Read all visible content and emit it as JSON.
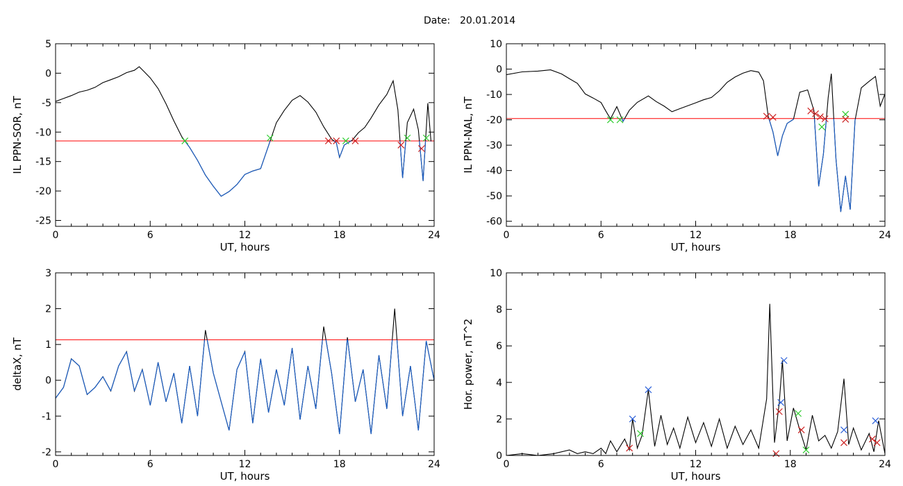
{
  "header": {
    "date_label": "Date:",
    "date_value": "20.01.2014"
  },
  "colors": {
    "trace": "#000000",
    "below": "#1d5fc4",
    "threshold": "#ff0000",
    "marker_red": "#cc1f1f",
    "marker_green": "#2ecc2e",
    "marker_blue": "#2a5fd8"
  },
  "chart_data": [
    {
      "id": "p1",
      "type": "line",
      "xlabel": "UT, hours",
      "ylabel": "IL PPN-SOR, nT",
      "xlim": [
        0,
        24
      ],
      "ylim": [
        -26,
        5
      ],
      "xticks": [
        0,
        6,
        12,
        18,
        24
      ],
      "yticks": [
        5,
        0,
        -5,
        -10,
        -15,
        -20,
        -25
      ],
      "threshold": -11.5,
      "series": [
        {
          "points": [
            [
              0,
              -4.8
            ],
            [
              0.5,
              -4.3
            ],
            [
              1,
              -3.8
            ],
            [
              1.5,
              -3.2
            ],
            [
              2,
              -2.9
            ],
            [
              2.5,
              -2.4
            ],
            [
              3,
              -1.6
            ],
            [
              3.5,
              -1.1
            ],
            [
              4,
              -0.6
            ],
            [
              4.5,
              0.1
            ],
            [
              5,
              0.5
            ],
            [
              5.3,
              1.1
            ],
            [
              5.6,
              0.3
            ],
            [
              6,
              -0.8
            ],
            [
              6.5,
              -2.6
            ],
            [
              7,
              -5.2
            ],
            [
              7.5,
              -8.1
            ],
            [
              8,
              -10.8
            ],
            [
              8.5,
              -12.6
            ],
            [
              9,
              -14.8
            ],
            [
              9.5,
              -17.3
            ],
            [
              10,
              -19.2
            ],
            [
              10.5,
              -20.9
            ],
            [
              11,
              -20.1
            ],
            [
              11.5,
              -18.9
            ],
            [
              12,
              -17.2
            ],
            [
              12.5,
              -16.6
            ],
            [
              13,
              -16.2
            ],
            [
              13.5,
              -12.3
            ],
            [
              14,
              -8.4
            ],
            [
              14.5,
              -6.3
            ],
            [
              15,
              -4.6
            ],
            [
              15.5,
              -3.8
            ],
            [
              16,
              -4.9
            ],
            [
              16.5,
              -6.6
            ],
            [
              17,
              -9.1
            ],
            [
              17.5,
              -11.2
            ],
            [
              17.8,
              -11.8
            ],
            [
              18,
              -14.3
            ],
            [
              18.3,
              -12.2
            ],
            [
              18.8,
              -11.4
            ],
            [
              19.2,
              -10.1
            ],
            [
              19.6,
              -9.2
            ],
            [
              20,
              -7.6
            ],
            [
              20.5,
              -5.4
            ],
            [
              21,
              -3.6
            ],
            [
              21.4,
              -1.3
            ],
            [
              21.7,
              -6.2
            ],
            [
              22,
              -17.8
            ],
            [
              22.3,
              -8.4
            ],
            [
              22.7,
              -6.1
            ],
            [
              23,
              -9.6
            ],
            [
              23.3,
              -18.3
            ],
            [
              23.6,
              -5.1
            ],
            [
              23.8,
              -11.6
            ]
          ]
        }
      ],
      "markers": [
        {
          "x": 8.2,
          "y": -11.5,
          "color": "green"
        },
        {
          "x": 13.6,
          "y": -11.0,
          "color": "green"
        },
        {
          "x": 17.3,
          "y": -11.5,
          "color": "red"
        },
        {
          "x": 17.8,
          "y": -11.5,
          "color": "red"
        },
        {
          "x": 18.4,
          "y": -11.5,
          "color": "green"
        },
        {
          "x": 19.0,
          "y": -11.5,
          "color": "red"
        },
        {
          "x": 21.9,
          "y": -12.2,
          "color": "red"
        },
        {
          "x": 22.3,
          "y": -11.0,
          "color": "green"
        },
        {
          "x": 23.2,
          "y": -12.8,
          "color": "red"
        },
        {
          "x": 23.5,
          "y": -11.0,
          "color": "green"
        }
      ]
    },
    {
      "id": "p2",
      "type": "line",
      "xlabel": "UT, hours",
      "ylabel": "IL PPN-NAL, nT",
      "xlim": [
        0,
        24
      ],
      "ylim": [
        -62,
        10
      ],
      "xticks": [
        0,
        6,
        12,
        18,
        24
      ],
      "yticks": [
        10,
        0,
        -10,
        -20,
        -30,
        -40,
        -50,
        -60
      ],
      "threshold": -19.5,
      "series": [
        {
          "points": [
            [
              0,
              -2.2
            ],
            [
              1,
              -1.1
            ],
            [
              2,
              -0.8
            ],
            [
              2.8,
              -0.3
            ],
            [
              3.5,
              -1.9
            ],
            [
              4,
              -3.8
            ],
            [
              4.5,
              -5.6
            ],
            [
              5,
              -9.8
            ],
            [
              5.5,
              -11.4
            ],
            [
              6,
              -13.2
            ],
            [
              6.3,
              -16.5
            ],
            [
              6.6,
              -19.6
            ],
            [
              7,
              -14.8
            ],
            [
              7.4,
              -20.6
            ],
            [
              7.8,
              -16.2
            ],
            [
              8.3,
              -13.1
            ],
            [
              9,
              -10.6
            ],
            [
              9.5,
              -12.8
            ],
            [
              10,
              -14.6
            ],
            [
              10.5,
              -16.8
            ],
            [
              11,
              -15.6
            ],
            [
              12,
              -13.3
            ],
            [
              12.5,
              -12.1
            ],
            [
              13,
              -11.2
            ],
            [
              13.5,
              -8.6
            ],
            [
              14,
              -5.2
            ],
            [
              14.5,
              -3.1
            ],
            [
              15,
              -1.6
            ],
            [
              15.5,
              -0.6
            ],
            [
              16,
              -1.2
            ],
            [
              16.3,
              -4.6
            ],
            [
              16.6,
              -18.6
            ],
            [
              16.9,
              -24.8
            ],
            [
              17.2,
              -34.2
            ],
            [
              17.5,
              -26.3
            ],
            [
              17.8,
              -21.4
            ],
            [
              18.2,
              -19.8
            ],
            [
              18.6,
              -9.1
            ],
            [
              19.1,
              -8.2
            ],
            [
              19.5,
              -16.4
            ],
            [
              19.8,
              -46.2
            ],
            [
              20.1,
              -33.5
            ],
            [
              20.4,
              -11.2
            ],
            [
              20.6,
              -1.8
            ],
            [
              20.9,
              -35.8
            ],
            [
              21.2,
              -56.3
            ],
            [
              21.5,
              -42.1
            ],
            [
              21.8,
              -55.4
            ],
            [
              22.1,
              -20.3
            ],
            [
              22.5,
              -7.4
            ],
            [
              23,
              -4.8
            ],
            [
              23.4,
              -2.9
            ],
            [
              23.7,
              -14.6
            ],
            [
              24,
              -9.8
            ]
          ]
        }
      ],
      "markers": [
        {
          "x": 6.6,
          "y": -20.0,
          "color": "green"
        },
        {
          "x": 7.2,
          "y": -20.0,
          "color": "green"
        },
        {
          "x": 16.5,
          "y": -18.6,
          "color": "red"
        },
        {
          "x": 16.9,
          "y": -19.0,
          "color": "red"
        },
        {
          "x": 19.3,
          "y": -16.5,
          "color": "red"
        },
        {
          "x": 19.6,
          "y": -17.6,
          "color": "red"
        },
        {
          "x": 19.9,
          "y": -18.8,
          "color": "red"
        },
        {
          "x": 20.2,
          "y": -19.6,
          "color": "red"
        },
        {
          "x": 20.0,
          "y": -22.8,
          "color": "green"
        },
        {
          "x": 21.5,
          "y": -17.8,
          "color": "green"
        },
        {
          "x": 21.5,
          "y": -19.8,
          "color": "red"
        }
      ]
    },
    {
      "id": "p3",
      "type": "line",
      "xlabel": "UT, hours",
      "ylabel": "deltaX, nT",
      "xlim": [
        0,
        24
      ],
      "ylim": [
        -2.1,
        3.0
      ],
      "xticks": [
        0,
        6,
        12,
        18,
        24
      ],
      "yticks": [
        3,
        2,
        1,
        0,
        -1,
        -2
      ],
      "threshold": 1.13,
      "series": [
        {
          "points": [
            [
              0,
              -0.5
            ],
            [
              0.5,
              -0.2
            ],
            [
              1,
              0.6
            ],
            [
              1.5,
              0.4
            ],
            [
              2,
              -0.4
            ],
            [
              2.5,
              -0.2
            ],
            [
              3,
              0.1
            ],
            [
              3.5,
              -0.3
            ],
            [
              4,
              0.4
            ],
            [
              4.5,
              0.8
            ],
            [
              5,
              -0.3
            ],
            [
              5.5,
              0.3
            ],
            [
              6,
              -0.7
            ],
            [
              6.5,
              0.5
            ],
            [
              7,
              -0.6
            ],
            [
              7.5,
              0.2
            ],
            [
              8,
              -1.2
            ],
            [
              8.5,
              0.4
            ],
            [
              9,
              -1.0
            ],
            [
              9.5,
              1.4
            ],
            [
              10,
              0.2
            ],
            [
              10.5,
              -0.6
            ],
            [
              11,
              -1.4
            ],
            [
              11.5,
              0.3
            ],
            [
              12,
              0.8
            ],
            [
              12.5,
              -1.2
            ],
            [
              13,
              0.6
            ],
            [
              13.5,
              -0.9
            ],
            [
              14,
              0.3
            ],
            [
              14.5,
              -0.7
            ],
            [
              15,
              0.9
            ],
            [
              15.5,
              -1.1
            ],
            [
              16,
              0.4
            ],
            [
              16.5,
              -0.8
            ],
            [
              17,
              1.5
            ],
            [
              17.5,
              0.2
            ],
            [
              18,
              -1.5
            ],
            [
              18.5,
              1.2
            ],
            [
              19,
              -0.6
            ],
            [
              19.5,
              0.3
            ],
            [
              20,
              -1.5
            ],
            [
              20.5,
              0.7
            ],
            [
              21,
              -0.8
            ],
            [
              21.5,
              2.0
            ],
            [
              22,
              -1.0
            ],
            [
              22.5,
              0.4
            ],
            [
              23,
              -1.4
            ],
            [
              23.5,
              1.1
            ],
            [
              24,
              0.0
            ]
          ]
        }
      ],
      "markers": []
    },
    {
      "id": "p4",
      "type": "line",
      "xlabel": "UT, hours",
      "ylabel": "Hor. power, nT^2",
      "xlim": [
        0,
        24
      ],
      "ylim": [
        0,
        10
      ],
      "xticks": [
        0,
        6,
        12,
        18,
        24
      ],
      "yticks": [
        10,
        8,
        6,
        4,
        2,
        0
      ],
      "threshold": null,
      "series": [
        {
          "points": [
            [
              0,
              0.0
            ],
            [
              1,
              0.1
            ],
            [
              2,
              0.0
            ],
            [
              3,
              0.1
            ],
            [
              4,
              0.3
            ],
            [
              4.5,
              0.1
            ],
            [
              5,
              0.2
            ],
            [
              5.5,
              0.1
            ],
            [
              6,
              0.4
            ],
            [
              6.3,
              0.1
            ],
            [
              6.6,
              0.8
            ],
            [
              7,
              0.2
            ],
            [
              7.5,
              0.9
            ],
            [
              7.8,
              0.3
            ],
            [
              8,
              2.0
            ],
            [
              8.3,
              0.4
            ],
            [
              8.6,
              1.1
            ],
            [
              9,
              3.6
            ],
            [
              9.4,
              0.5
            ],
            [
              9.8,
              2.2
            ],
            [
              10.2,
              0.6
            ],
            [
              10.6,
              1.5
            ],
            [
              11,
              0.4
            ],
            [
              11.5,
              2.1
            ],
            [
              12,
              0.7
            ],
            [
              12.5,
              1.8
            ],
            [
              13,
              0.5
            ],
            [
              13.5,
              2.0
            ],
            [
              14,
              0.4
            ],
            [
              14.5,
              1.6
            ],
            [
              15,
              0.6
            ],
            [
              15.5,
              1.4
            ],
            [
              16,
              0.4
            ],
            [
              16.5,
              3.1
            ],
            [
              16.7,
              8.3
            ],
            [
              17,
              0.7
            ],
            [
              17.3,
              2.9
            ],
            [
              17.5,
              5.2
            ],
            [
              17.8,
              0.8
            ],
            [
              18.2,
              2.6
            ],
            [
              18.6,
              1.4
            ],
            [
              19,
              0.3
            ],
            [
              19.4,
              2.2
            ],
            [
              19.8,
              0.8
            ],
            [
              20.2,
              1.1
            ],
            [
              20.6,
              0.4
            ],
            [
              21,
              1.3
            ],
            [
              21.4,
              4.2
            ],
            [
              21.7,
              0.6
            ],
            [
              22,
              1.5
            ],
            [
              22.5,
              0.3
            ],
            [
              23,
              1.2
            ],
            [
              23.3,
              0.2
            ],
            [
              23.6,
              1.9
            ],
            [
              24,
              0.1
            ]
          ]
        }
      ],
      "markers": [
        {
          "x": 8.0,
          "y": 2.0,
          "color": "blue"
        },
        {
          "x": 9.0,
          "y": 3.6,
          "color": "blue"
        },
        {
          "x": 7.8,
          "y": 0.4,
          "color": "red"
        },
        {
          "x": 8.5,
          "y": 1.2,
          "color": "green"
        },
        {
          "x": 17.1,
          "y": 0.1,
          "color": "red"
        },
        {
          "x": 17.3,
          "y": 2.4,
          "color": "red"
        },
        {
          "x": 17.4,
          "y": 2.9,
          "color": "blue"
        },
        {
          "x": 17.6,
          "y": 5.2,
          "color": "blue"
        },
        {
          "x": 18.5,
          "y": 2.3,
          "color": "green"
        },
        {
          "x": 18.7,
          "y": 1.4,
          "color": "red"
        },
        {
          "x": 19.0,
          "y": 0.3,
          "color": "green"
        },
        {
          "x": 21.4,
          "y": 1.4,
          "color": "blue"
        },
        {
          "x": 21.4,
          "y": 0.7,
          "color": "red"
        },
        {
          "x": 23.2,
          "y": 0.9,
          "color": "red"
        },
        {
          "x": 23.4,
          "y": 1.9,
          "color": "blue"
        },
        {
          "x": 23.5,
          "y": 0.7,
          "color": "red"
        }
      ]
    }
  ]
}
